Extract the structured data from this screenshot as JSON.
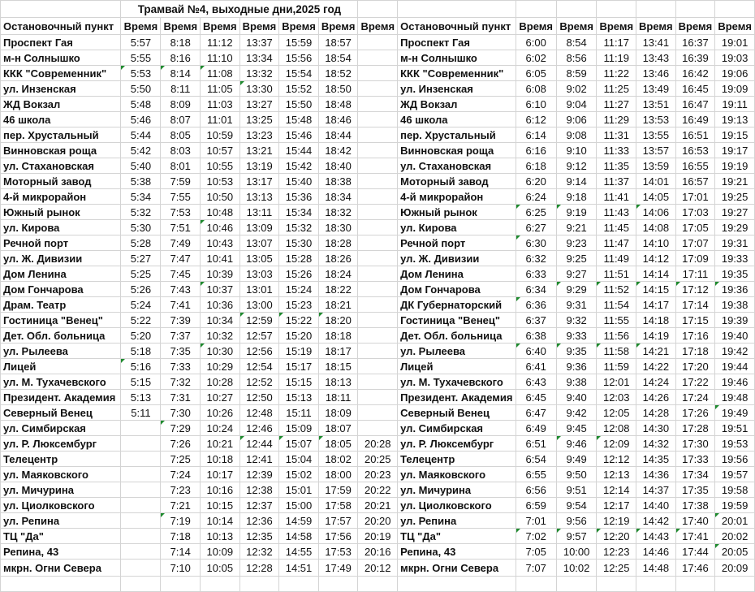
{
  "title": "Трамвай №4, выходные дни,2025 год",
  "colors": {
    "grid": "#d4d4d4",
    "error_indicator": "#1e8a2e"
  },
  "left": {
    "header": [
      "Остановочный пункт",
      "Время",
      "Время",
      "Время",
      "Время",
      "Время",
      "Время",
      "Время"
    ],
    "rows": [
      {
        "name": "Проспект Гая",
        "times": [
          "5:57",
          "8:18",
          "11:12",
          "13:37",
          "15:59",
          "18:57",
          ""
        ],
        "warn": []
      },
      {
        "name": "м-н Солнышко",
        "times": [
          "5:55",
          "8:16",
          "11:10",
          "13:34",
          "15:56",
          "18:54",
          ""
        ],
        "warn": []
      },
      {
        "name": "ККК \"Современник\"",
        "times": [
          "5:53",
          "8:14",
          "11:08",
          "13:32",
          "15:54",
          "18:52",
          ""
        ],
        "warn": [
          0,
          1,
          2
        ]
      },
      {
        "name": "ул. Инзенская",
        "times": [
          "5:50",
          "8:11",
          "11:05",
          "13:30",
          "15:52",
          "18:50",
          ""
        ],
        "warn": [
          3
        ]
      },
      {
        "name": "ЖД Вокзал",
        "times": [
          "5:48",
          "8:09",
          "11:03",
          "13:27",
          "15:50",
          "18:48",
          ""
        ],
        "warn": []
      },
      {
        "name": "46 школа",
        "times": [
          "5:46",
          "8:07",
          "11:01",
          "13:25",
          "15:48",
          "18:46",
          ""
        ],
        "warn": []
      },
      {
        "name": "пер. Хрустальный",
        "times": [
          "5:44",
          "8:05",
          "10:59",
          "13:23",
          "15:46",
          "18:44",
          ""
        ],
        "warn": []
      },
      {
        "name": "Винновская роща",
        "times": [
          "5:42",
          "8:03",
          "10:57",
          "13:21",
          "15:44",
          "18:42",
          ""
        ],
        "warn": []
      },
      {
        "name": "ул. Стахановская",
        "times": [
          "5:40",
          "8:01",
          "10:55",
          "13:19",
          "15:42",
          "18:40",
          ""
        ],
        "warn": []
      },
      {
        "name": "Моторный завод",
        "times": [
          "5:38",
          "7:59",
          "10:53",
          "13:17",
          "15:40",
          "18:38",
          ""
        ],
        "warn": []
      },
      {
        "name": "4-й микрорайон",
        "times": [
          "5:34",
          "7:55",
          "10:50",
          "13:13",
          "15:36",
          "18:34",
          ""
        ],
        "warn": []
      },
      {
        "name": "Южный рынок",
        "times": [
          "5:32",
          "7:53",
          "10:48",
          "13:11",
          "15:34",
          "18:32",
          ""
        ],
        "warn": []
      },
      {
        "name": "ул. Кирова",
        "times": [
          "5:30",
          "7:51",
          "10:46",
          "13:09",
          "15:32",
          "18:30",
          ""
        ],
        "warn": [
          2
        ]
      },
      {
        "name": "Речной порт",
        "times": [
          "5:28",
          "7:49",
          "10:43",
          "13:07",
          "15:30",
          "18:28",
          ""
        ],
        "warn": []
      },
      {
        "name": "ул. Ж. Дивизии",
        "times": [
          "5:27",
          "7:47",
          "10:41",
          "13:05",
          "15:28",
          "18:26",
          ""
        ],
        "warn": []
      },
      {
        "name": "Дом Ленина",
        "times": [
          "5:25",
          "7:45",
          "10:39",
          "13:03",
          "15:26",
          "18:24",
          ""
        ],
        "warn": []
      },
      {
        "name": "Дом Гончарова",
        "times": [
          "5:26",
          "7:43",
          "10:37",
          "13:01",
          "15:24",
          "18:22",
          ""
        ],
        "warn": [
          2
        ]
      },
      {
        "name": "Драм. Театр",
        "times": [
          "5:24",
          "7:41",
          "10:36",
          "13:00",
          "15:23",
          "18:21",
          ""
        ],
        "warn": []
      },
      {
        "name": "Гостиница \"Венец\"",
        "times": [
          "5:22",
          "7:39",
          "10:34",
          "12:59",
          "15:22",
          "18:20",
          ""
        ],
        "warn": [
          3,
          4,
          5
        ]
      },
      {
        "name": "Дет. Обл. больница",
        "times": [
          "5:20",
          "7:37",
          "10:32",
          "12:57",
          "15:20",
          "18:18",
          ""
        ],
        "warn": []
      },
      {
        "name": "ул. Рылеева",
        "times": [
          "5:18",
          "7:35",
          "10:30",
          "12:56",
          "15:19",
          "18:17",
          ""
        ],
        "warn": [
          2
        ]
      },
      {
        "name": "Лицей",
        "times": [
          "5:16",
          "7:33",
          "10:29",
          "12:54",
          "15:17",
          "18:15",
          ""
        ],
        "warn": [
          0
        ]
      },
      {
        "name": "ул. М. Тухачевского",
        "times": [
          "5:15",
          "7:32",
          "10:28",
          "12:52",
          "15:15",
          "18:13",
          ""
        ],
        "warn": []
      },
      {
        "name": "Президент. Академия",
        "times": [
          "5:13",
          "7:31",
          "10:27",
          "12:50",
          "15:13",
          "18:11",
          ""
        ],
        "warn": []
      },
      {
        "name": "Северный Венец",
        "times": [
          "5:11",
          "7:30",
          "10:26",
          "12:48",
          "15:11",
          "18:09",
          ""
        ],
        "warn": []
      },
      {
        "name": "ул. Симбирская",
        "times": [
          "",
          "7:29",
          "10:24",
          "12:46",
          "15:09",
          "18:07",
          ""
        ],
        "warn": [
          1
        ]
      },
      {
        "name": "ул. Р. Люксембург",
        "times": [
          "",
          "7:26",
          "10:21",
          "12:44",
          "15:07",
          "18:05",
          "20:28"
        ],
        "warn": [
          3,
          4,
          5
        ]
      },
      {
        "name": "Телецентр",
        "times": [
          "",
          "7:25",
          "10:18",
          "12:41",
          "15:04",
          "18:02",
          "20:25"
        ],
        "warn": []
      },
      {
        "name": "ул. Маяковского",
        "times": [
          "",
          "7:24",
          "10:17",
          "12:39",
          "15:02",
          "18:00",
          "20:23"
        ],
        "warn": []
      },
      {
        "name": "ул. Мичурина",
        "times": [
          "",
          "7:23",
          "10:16",
          "12:38",
          "15:01",
          "17:59",
          "20:22"
        ],
        "warn": []
      },
      {
        "name": "ул. Циолковского",
        "times": [
          "",
          "7:21",
          "10:15",
          "12:37",
          "15:00",
          "17:58",
          "20:21"
        ],
        "warn": []
      },
      {
        "name": "ул. Репина",
        "times": [
          "",
          "7:19",
          "10:14",
          "12:36",
          "14:59",
          "17:57",
          "20:20"
        ],
        "warn": [
          1
        ]
      },
      {
        "name": "ТЦ \"Да\"",
        "times": [
          "",
          "7:18",
          "10:13",
          "12:35",
          "14:58",
          "17:56",
          "20:19"
        ],
        "warn": []
      },
      {
        "name": "Репина, 43",
        "times": [
          "",
          "7:14",
          "10:09",
          "12:32",
          "14:55",
          "17:53",
          "20:16"
        ],
        "warn": []
      },
      {
        "name": "мкрн. Огни Севера",
        "times": [
          "",
          "7:10",
          "10:05",
          "12:28",
          "14:51",
          "17:49",
          "20:12"
        ],
        "warn": []
      }
    ]
  },
  "right": {
    "header": [
      "Остановочный пункт",
      "Время",
      "Время",
      "Время",
      "Время",
      "Время",
      "Время"
    ],
    "rows": [
      {
        "name": "Проспект Гая",
        "times": [
          "6:00",
          "8:54",
          "11:17",
          "13:41",
          "16:37",
          "19:01"
        ],
        "warn": []
      },
      {
        "name": "м-н Солнышко",
        "times": [
          "6:02",
          "8:56",
          "11:19",
          "13:43",
          "16:39",
          "19:03"
        ],
        "warn": []
      },
      {
        "name": "ККК \"Современник\"",
        "times": [
          "6:05",
          "8:59",
          "11:22",
          "13:46",
          "16:42",
          "19:06"
        ],
        "warn": []
      },
      {
        "name": "ул. Инзенская",
        "times": [
          "6:08",
          "9:02",
          "11:25",
          "13:49",
          "16:45",
          "19:09"
        ],
        "warn": []
      },
      {
        "name": "ЖД Вокзал",
        "times": [
          "6:10",
          "9:04",
          "11:27",
          "13:51",
          "16:47",
          "19:11"
        ],
        "warn": []
      },
      {
        "name": "46 школа",
        "times": [
          "6:12",
          "9:06",
          "11:29",
          "13:53",
          "16:49",
          "19:13"
        ],
        "warn": []
      },
      {
        "name": "пер. Хрустальный",
        "times": [
          "6:14",
          "9:08",
          "11:31",
          "13:55",
          "16:51",
          "19:15"
        ],
        "warn": []
      },
      {
        "name": "Винновская роща",
        "times": [
          "6:16",
          "9:10",
          "11:33",
          "13:57",
          "16:53",
          "19:17"
        ],
        "warn": []
      },
      {
        "name": "ул. Стахановская",
        "times": [
          "6:18",
          "9:12",
          "11:35",
          "13:59",
          "16:55",
          "19:19"
        ],
        "warn": []
      },
      {
        "name": "Моторный завод",
        "times": [
          "6:20",
          "9:14",
          "11:37",
          "14:01",
          "16:57",
          "19:21"
        ],
        "warn": []
      },
      {
        "name": "4-й микрорайон",
        "times": [
          "6:24",
          "9:18",
          "11:41",
          "14:05",
          "17:01",
          "19:25"
        ],
        "warn": []
      },
      {
        "name": "Южный рынок",
        "times": [
          "6:25",
          "9:19",
          "11:43",
          "14:06",
          "17:03",
          "19:27"
        ],
        "warn": [
          0,
          1,
          3
        ]
      },
      {
        "name": "ул. Кирова",
        "times": [
          "6:27",
          "9:21",
          "11:45",
          "14:08",
          "17:05",
          "19:29"
        ],
        "warn": []
      },
      {
        "name": "Речной порт",
        "times": [
          "6:30",
          "9:23",
          "11:47",
          "14:10",
          "17:07",
          "19:31"
        ],
        "warn": [
          0
        ]
      },
      {
        "name": "ул. Ж. Дивизии",
        "times": [
          "6:32",
          "9:25",
          "11:49",
          "14:12",
          "17:09",
          "19:33"
        ],
        "warn": []
      },
      {
        "name": "Дом Ленина",
        "times": [
          "6:33",
          "9:27",
          "11:51",
          "14:14",
          "17:11",
          "19:35"
        ],
        "warn": []
      },
      {
        "name": "Дом Гончарова",
        "times": [
          "6:34",
          "9:29",
          "11:52",
          "14:15",
          "17:12",
          "19:36"
        ],
        "warn": [
          1,
          2,
          3,
          4,
          5
        ]
      },
      {
        "name": "ДК Губернаторский",
        "times": [
          "6:36",
          "9:31",
          "11:54",
          "14:17",
          "17:14",
          "19:38"
        ],
        "warn": [
          0
        ]
      },
      {
        "name": "Гостиница \"Венец\"",
        "times": [
          "6:37",
          "9:32",
          "11:55",
          "14:18",
          "17:15",
          "19:39"
        ],
        "warn": []
      },
      {
        "name": "Дет. Обл. больница",
        "times": [
          "6:38",
          "9:33",
          "11:56",
          "14:19",
          "17:16",
          "19:40"
        ],
        "warn": []
      },
      {
        "name": "ул. Рылеева",
        "times": [
          "6:40",
          "9:35",
          "11:58",
          "14:21",
          "17:18",
          "19:42"
        ],
        "warn": [
          0,
          1,
          2,
          3
        ]
      },
      {
        "name": "Лицей",
        "times": [
          "6:41",
          "9:36",
          "11:59",
          "14:22",
          "17:20",
          "19:44"
        ],
        "warn": []
      },
      {
        "name": "ул. М. Тухачевского",
        "times": [
          "6:43",
          "9:38",
          "12:01",
          "14:24",
          "17:22",
          "19:46"
        ],
        "warn": []
      },
      {
        "name": "Президент. Академия",
        "times": [
          "6:45",
          "9:40",
          "12:03",
          "14:26",
          "17:24",
          "19:48"
        ],
        "warn": []
      },
      {
        "name": "Северный Венец",
        "times": [
          "6:47",
          "9:42",
          "12:05",
          "14:28",
          "17:26",
          "19:49"
        ],
        "warn": [
          5
        ]
      },
      {
        "name": "ул. Симбирская",
        "times": [
          "6:49",
          "9:45",
          "12:08",
          "14:30",
          "17:28",
          "19:51"
        ],
        "warn": []
      },
      {
        "name": "ул. Р. Люксембург",
        "times": [
          "6:51",
          "9:46",
          "12:09",
          "14:32",
          "17:30",
          "19:53"
        ],
        "warn": [
          1,
          2
        ]
      },
      {
        "name": "Телецентр",
        "times": [
          "6:54",
          "9:49",
          "12:12",
          "14:35",
          "17:33",
          "19:56"
        ],
        "warn": []
      },
      {
        "name": "ул. Маяковского",
        "times": [
          "6:55",
          "9:50",
          "12:13",
          "14:36",
          "17:34",
          "19:57"
        ],
        "warn": []
      },
      {
        "name": "ул. Мичурина",
        "times": [
          "6:56",
          "9:51",
          "12:14",
          "14:37",
          "17:35",
          "19:58"
        ],
        "warn": []
      },
      {
        "name": "ул. Циолковского",
        "times": [
          "6:59",
          "9:54",
          "12:17",
          "14:40",
          "17:38",
          "19:59"
        ],
        "warn": []
      },
      {
        "name": "ул. Репина",
        "times": [
          "7:01",
          "9:56",
          "12:19",
          "14:42",
          "17:40",
          "20:01"
        ],
        "warn": [
          5
        ]
      },
      {
        "name": "ТЦ \"Да\"",
        "times": [
          "7:02",
          "9:57",
          "12:20",
          "14:43",
          "17:41",
          "20:02"
        ],
        "warn": [
          0,
          1,
          2,
          3,
          4
        ]
      },
      {
        "name": "Репина, 43",
        "times": [
          "7:05",
          "10:00",
          "12:23",
          "14:46",
          "17:44",
          "20:05"
        ],
        "warn": [
          5
        ]
      },
      {
        "name": "мкрн. Огни Севера",
        "times": [
          "7:07",
          "10:02",
          "12:25",
          "14:48",
          "17:46",
          "20:09"
        ],
        "warn": []
      }
    ]
  }
}
